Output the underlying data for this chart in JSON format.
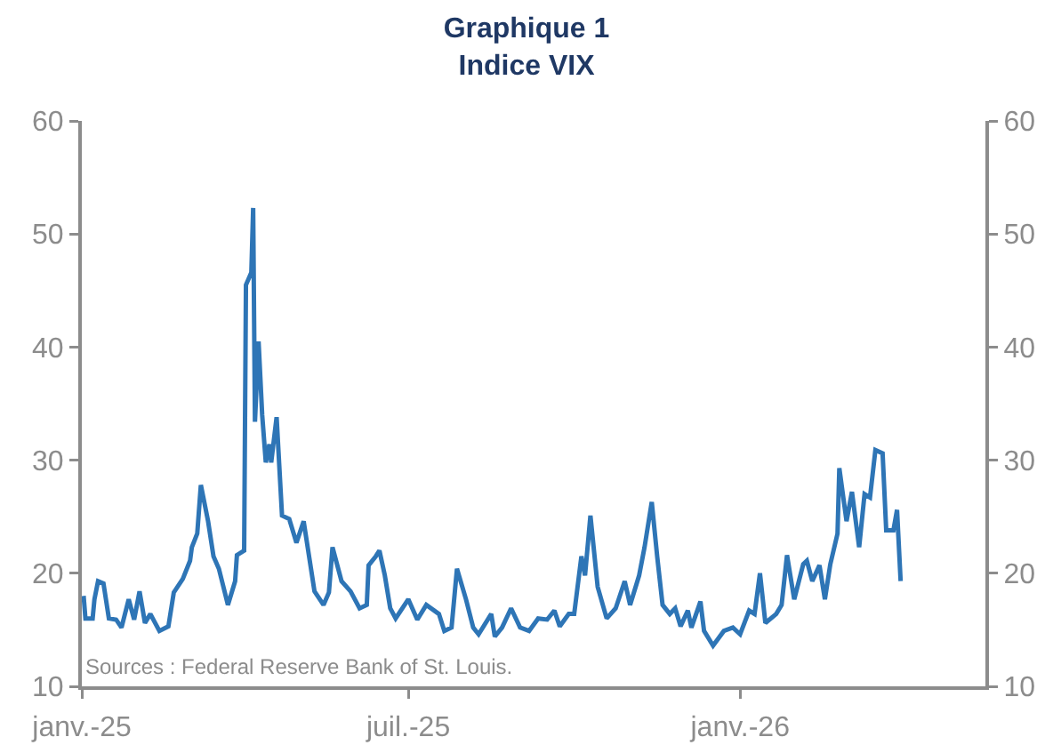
{
  "chart_data": {
    "type": "line",
    "title": "Graphique 1",
    "subtitle": "Indice VIX",
    "annotations": [
      "Sources : Federal Reserve Bank of St. Louis."
    ],
    "x": [
      "2025-01-02",
      "2025-01-03",
      "2025-01-07",
      "2025-01-08",
      "2025-01-10",
      "2025-01-13",
      "2025-01-16",
      "2025-01-20",
      "2025-01-23",
      "2025-01-27",
      "2025-01-30",
      "2025-02-02",
      "2025-02-05",
      "2025-02-08",
      "2025-02-13",
      "2025-02-18",
      "2025-02-21",
      "2025-02-26",
      "2025-03-02",
      "2025-03-03",
      "2025-03-06",
      "2025-03-08",
      "2025-03-12",
      "2025-03-15",
      "2025-03-18",
      "2025-03-23",
      "2025-03-27",
      "2025-03-28",
      "2025-04-01",
      "2025-04-02",
      "2025-04-05",
      "2025-04-06",
      "2025-04-07",
      "2025-04-09",
      "2025-04-11",
      "2025-04-13",
      "2025-04-15",
      "2025-04-16",
      "2025-04-19",
      "2025-04-22",
      "2025-04-26",
      "2025-04-30",
      "2025-05-04",
      "2025-05-10",
      "2025-05-15",
      "2025-05-18",
      "2025-05-20",
      "2025-05-25",
      "2025-05-30",
      "2025-06-04",
      "2025-06-08",
      "2025-06-09",
      "2025-06-13",
      "2025-06-15",
      "2025-06-18",
      "2025-06-21",
      "2025-06-24",
      "2025-07-01",
      "2025-07-06",
      "2025-07-11",
      "2025-07-18",
      "2025-07-21",
      "2025-07-25",
      "2025-07-28",
      "2025-08-02",
      "2025-08-06",
      "2025-08-09",
      "2025-08-16",
      "2025-08-18",
      "2025-08-22",
      "2025-08-27",
      "2025-09-01",
      "2025-09-06",
      "2025-09-11",
      "2025-09-16",
      "2025-09-20",
      "2025-09-23",
      "2025-09-28",
      "2025-10-01",
      "2025-10-05",
      "2025-10-07",
      "2025-10-10",
      "2025-10-14",
      "2025-10-19",
      "2025-10-24",
      "2025-10-29",
      "2025-11-01",
      "2025-11-06",
      "2025-11-09",
      "2025-11-13",
      "2025-11-16",
      "2025-11-19",
      "2025-11-23",
      "2025-11-26",
      "2025-11-29",
      "2025-12-03",
      "2025-12-05",
      "2025-12-10",
      "2025-12-12",
      "2025-12-17",
      "2025-12-23",
      "2025-12-28",
      "2026-01-01",
      "2026-01-06",
      "2026-01-09",
      "2026-01-12",
      "2026-01-15",
      "2026-01-21",
      "2026-01-24",
      "2026-01-27",
      "2026-01-31",
      "2026-02-05",
      "2026-02-07",
      "2026-02-10",
      "2026-02-14",
      "2026-02-17",
      "2026-02-20",
      "2026-02-24",
      "2026-02-25",
      "2026-03-01",
      "2026-03-04",
      "2026-03-08",
      "2026-03-11",
      "2026-03-14",
      "2026-03-17",
      "2026-03-21",
      "2026-03-23",
      "2026-03-27",
      "2026-03-29",
      "2026-03-31"
    ],
    "series": [
      {
        "color": "#2e75b6",
        "values": [
          18,
          16,
          16,
          17.7,
          19.3,
          19.1,
          16,
          15.9,
          15.2,
          17.7,
          15.9,
          18.4,
          15.6,
          16.4,
          14.9,
          15.3,
          18.3,
          19.5,
          21.1,
          22.3,
          23.5,
          27.8,
          24.6,
          21.5,
          20.4,
          17.2,
          19.3,
          21.6,
          22,
          45.5,
          46.6,
          52.3,
          33.4,
          40.5,
          34,
          29.8,
          31.4,
          29.8,
          33.8,
          25.1,
          24.8,
          22.7,
          24.6,
          18.4,
          17.2,
          18.3,
          22.3,
          19.3,
          18.4,
          16.9,
          17.2,
          20.7,
          21.5,
          22,
          19.8,
          16.9,
          16,
          17.7,
          15.9,
          17.2,
          16.4,
          14.9,
          15.2,
          20.4,
          17.7,
          15.2,
          14.6,
          16.4,
          14.4,
          15.2,
          16.9,
          15.2,
          14.9,
          16,
          15.9,
          16.7,
          15.3,
          16.4,
          16.4,
          21.5,
          19.8,
          25.1,
          18.8,
          16,
          16.9,
          19.3,
          17.2,
          19.8,
          22.3,
          26.3,
          21.5,
          17.2,
          16.4,
          16.9,
          15.3,
          16.7,
          15.2,
          17.5,
          14.9,
          13.6,
          14.9,
          15.2,
          14.6,
          16.7,
          16.4,
          20,
          15.6,
          16.4,
          17.2,
          21.6,
          17.7,
          20.8,
          21.1,
          19.3,
          20.7,
          17.7,
          20.8,
          23.5,
          29.3,
          24.6,
          27.2,
          22.3,
          27,
          26.7,
          30.9,
          30.6,
          23.8,
          23.8,
          25.6,
          19.3
        ]
      }
    ],
    "xlim": [
      "2025-01-01",
      "2026-05-17"
    ],
    "xticks": [
      {
        "value": "2025-01-01",
        "label": "janv.-25"
      },
      {
        "value": "2025-07-01",
        "label": "juil.-25"
      },
      {
        "value": "2026-01-01",
        "label": "janv.-26"
      }
    ],
    "ylim": [
      10,
      60
    ],
    "yticks": [
      10,
      20,
      30,
      40,
      50,
      60
    ],
    "y2lim": [
      10,
      60
    ],
    "y2ticks": [
      10,
      20,
      30,
      40,
      50,
      60
    ],
    "grid": false,
    "marker": "none",
    "line_style": "solid"
  }
}
